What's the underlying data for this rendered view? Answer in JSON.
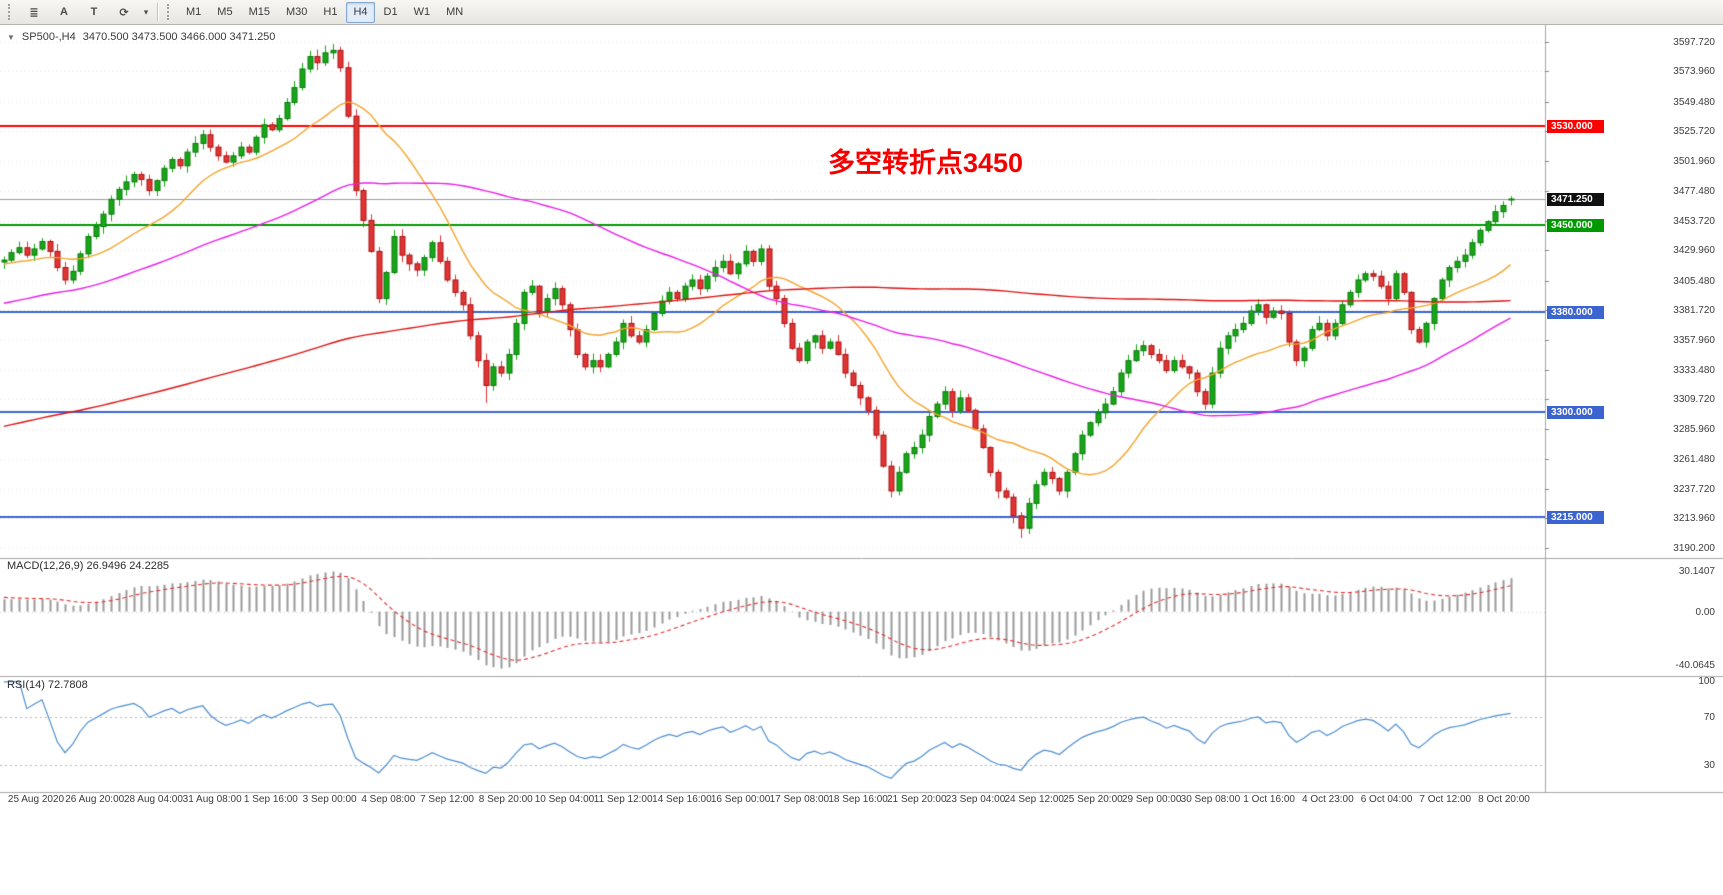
{
  "toolbar": {
    "icons": [
      {
        "name": "charts-menu",
        "glyph": "≣"
      },
      {
        "name": "crosshair-a",
        "glyph": "A"
      },
      {
        "name": "text-tool",
        "glyph": "T"
      },
      {
        "name": "refresh",
        "glyph": "⟳"
      },
      {
        "name": "dropdown-caret",
        "glyph": "▾"
      }
    ],
    "timeframes": [
      "M1",
      "M5",
      "M15",
      "M30",
      "H1",
      "H4",
      "D1",
      "W1",
      "MN"
    ],
    "active_timeframe": "H4"
  },
  "chart_data": {
    "type": "candlestick",
    "symbol": "SP500-",
    "timeframe": "H4",
    "title_marker": "▼",
    "title_text": "SP500-,H4",
    "ohlc_display": "3470.500 3473.500 3466.000 3471.250",
    "ylim": [
      3182,
      3609
    ],
    "closes": [
      3422,
      3428,
      3432,
      3426,
      3431,
      3437,
      3429,
      3416,
      3406,
      3413,
      3427,
      3441,
      3449,
      3459,
      3471,
      3479,
      3485,
      3491,
      3487,
      3478,
      3486,
      3496,
      3503,
      3498,
      3509,
      3516,
      3523,
      3513,
      3506,
      3501,
      3506,
      3513,
      3509,
      3521,
      3531,
      3527,
      3536,
      3549,
      3561,
      3576,
      3586,
      3581,
      3589,
      3591,
      3577,
      3538,
      3478,
      3454,
      3429,
      3391,
      3412,
      3441,
      3426,
      3419,
      3414,
      3424,
      3436,
      3421,
      3406,
      3396,
      3386,
      3361,
      3341,
      3321,
      3336,
      3331,
      3346,
      3371,
      3396,
      3401,
      3381,
      3391,
      3399,
      3386,
      3366,
      3346,
      3336,
      3341,
      3336,
      3346,
      3356,
      3371,
      3361,
      3356,
      3366,
      3379,
      3389,
      3396,
      3391,
      3401,
      3406,
      3399,
      3409,
      3416,
      3421,
      3411,
      3419,
      3429,
      3421,
      3431,
      3401,
      3391,
      3371,
      3351,
      3341,
      3356,
      3361,
      3351,
      3356,
      3346,
      3331,
      3321,
      3311,
      3301,
      3281,
      3256,
      3236,
      3251,
      3266,
      3271,
      3281,
      3296,
      3306,
      3316,
      3301,
      3311,
      3301,
      3286,
      3271,
      3251,
      3236,
      3231,
      3216,
      3206,
      3226,
      3241,
      3251,
      3246,
      3236,
      3251,
      3266,
      3281,
      3291,
      3299,
      3306,
      3316,
      3331,
      3341,
      3349,
      3353,
      3346,
      3341,
      3333,
      3341,
      3336,
      3331,
      3316,
      3306,
      3331,
      3351,
      3361,
      3366,
      3371,
      3381,
      3386,
      3376,
      3381,
      3379,
      3356,
      3341,
      3351,
      3366,
      3371,
      3361,
      3371,
      3386,
      3396,
      3406,
      3411,
      3409,
      3401,
      3391,
      3411,
      3396,
      3366,
      3356,
      3371,
      3391,
      3406,
      3416,
      3421,
      3426,
      3436,
      3446,
      3453,
      3461,
      3466,
      3471.25
    ],
    "current_bar": {
      "open": 3470.5,
      "high": 3473.5,
      "low": 3466.0,
      "close": 3471.25
    },
    "extremes": {
      "high": {
        "42": 3595,
        "43": 3596
      },
      "low": {
        "63": 3307,
        "133": 3198
      }
    },
    "up_color": "#17a617",
    "down_color": "#e13434",
    "price_ticks": [
      "3597.720",
      "3573.960",
      "3549.480",
      "3525.720",
      "3501.960",
      "3477.480",
      "3453.720",
      "3429.960",
      "3405.480",
      "3381.720",
      "3357.960",
      "3333.480",
      "3309.720",
      "3285.960",
      "3261.480",
      "3237.720",
      "3213.960",
      "3190.200"
    ],
    "time_labels": [
      "25 Aug 2020",
      "26 Aug 20:00",
      "28 Aug 04:00",
      "31 Aug 08:00",
      "1 Sep 16:00",
      "3 Sep 00:00",
      "4 Sep 08:00",
      "7 Sep 12:00",
      "8 Sep 20:00",
      "10 Sep 04:00",
      "11 Sep 12:00",
      "14 Sep 16:00",
      "16 Sep 00:00",
      "17 Sep 08:00",
      "18 Sep 16:00",
      "21 Sep 20:00",
      "23 Sep 04:00",
      "24 Sep 12:00",
      "25 Sep 20:00",
      "29 Sep 00:00",
      "30 Sep 08:00",
      "1 Oct 16:00",
      "4 Oct 23:00",
      "6 Oct 04:00",
      "7 Oct 12:00",
      "8 Oct 20:00"
    ],
    "hlines": [
      {
        "price": 3530,
        "label": "3530.000",
        "color": "#ff0000"
      },
      {
        "price": 3450,
        "label": "3450.000",
        "color": "#009a00"
      },
      {
        "price": 3380,
        "label": "3380.000",
        "color": "#3c64d0"
      },
      {
        "price": 3300,
        "label": "3300.000",
        "color": "#3c64d0"
      },
      {
        "price": 3215,
        "label": "3215.000",
        "color": "#3c64d0"
      }
    ],
    "bid": {
      "price": 3471.25,
      "label": "3471.250",
      "line_color": "#9b9b9b",
      "box_color": "#101010"
    },
    "moving_averages": [
      {
        "name": "fast-ma",
        "period": 16,
        "color": "#f2a42c"
      },
      {
        "name": "medium-ma",
        "period": 55,
        "color": "#ea1fea"
      },
      {
        "name": "slow-ma",
        "period": 200,
        "color": "#dd1414"
      }
    ],
    "annotation": {
      "text": "多空转折点3450",
      "color": "#f50000"
    },
    "indicators": [
      {
        "name": "MACD",
        "label": "MACD(12,26,9) 26.9496 24.2285",
        "params": [
          12,
          26,
          9
        ],
        "values": [
          26.9496,
          24.2285
        ],
        "axis_labels": [
          "30.1407",
          "0.00",
          "-40.0645"
        ],
        "hist_color": "#9a9a9a",
        "signal_color": "#e03030"
      },
      {
        "name": "RSI",
        "label": "RSI(14) 72.7808",
        "period": 14,
        "value": 72.7808,
        "axis_labels": [
          "100",
          "70",
          "30"
        ],
        "levels": [
          70,
          30
        ],
        "line_color": "#4e8ed0",
        "level_color": "#b8b8b8"
      }
    ]
  }
}
